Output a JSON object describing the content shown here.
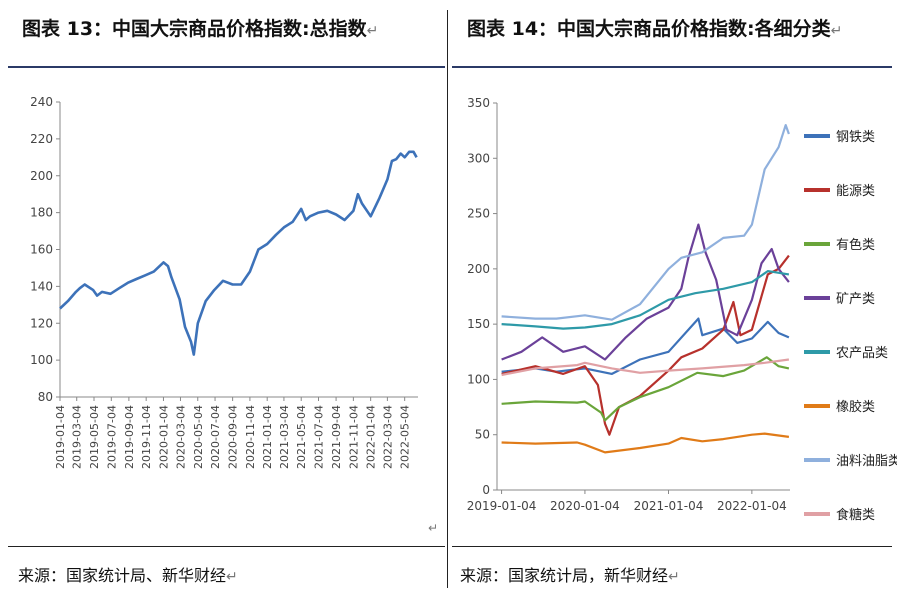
{
  "left": {
    "title": "图表 13：中国大宗商品价格指数:总指数",
    "source": "来源：国家统计局、新华财经",
    "chart_data": {
      "type": "line",
      "series": [
        {
          "color": "#3d72b9",
          "points": [
            [
              "2019-01-04",
              128
            ],
            [
              "2019-02-01",
              132
            ],
            [
              "2019-03-01",
              137
            ],
            [
              "2019-03-15",
              139
            ],
            [
              "2019-04-01",
              141
            ],
            [
              "2019-05-01",
              138
            ],
            [
              "2019-05-15",
              135
            ],
            [
              "2019-06-01",
              137
            ],
            [
              "2019-07-01",
              136
            ],
            [
              "2019-08-01",
              139
            ],
            [
              "2019-09-01",
              142
            ],
            [
              "2019-10-01",
              144
            ],
            [
              "2019-11-01",
              146
            ],
            [
              "2019-12-01",
              148
            ],
            [
              "2020-01-04",
              153
            ],
            [
              "2020-01-20",
              151
            ],
            [
              "2020-02-01",
              145
            ],
            [
              "2020-03-01",
              133
            ],
            [
              "2020-03-20",
              118
            ],
            [
              "2020-04-10",
              110
            ],
            [
              "2020-04-20",
              103
            ],
            [
              "2020-05-04",
              120
            ],
            [
              "2020-06-01",
              132
            ],
            [
              "2020-07-01",
              138
            ],
            [
              "2020-08-01",
              143
            ],
            [
              "2020-09-04",
              141
            ],
            [
              "2020-10-04",
              141
            ],
            [
              "2020-11-04",
              148
            ],
            [
              "2020-12-04",
              160
            ],
            [
              "2021-01-04",
              163
            ],
            [
              "2021-02-04",
              168
            ],
            [
              "2021-03-04",
              172
            ],
            [
              "2021-04-04",
              175
            ],
            [
              "2021-05-04",
              182
            ],
            [
              "2021-05-20",
              176
            ],
            [
              "2021-06-04",
              178
            ],
            [
              "2021-07-04",
              180
            ],
            [
              "2021-08-04",
              181
            ],
            [
              "2021-09-04",
              179
            ],
            [
              "2021-10-04",
              176
            ],
            [
              "2021-11-04",
              181
            ],
            [
              "2021-11-20",
              190
            ],
            [
              "2021-12-04",
              185
            ],
            [
              "2022-01-04",
              178
            ],
            [
              "2022-02-04",
              188
            ],
            [
              "2022-03-04",
              198
            ],
            [
              "2022-03-20",
              208
            ],
            [
              "2022-04-04",
              209
            ],
            [
              "2022-04-20",
              212
            ],
            [
              "2022-05-04",
              210
            ],
            [
              "2022-05-20",
              213
            ],
            [
              "2022-06-04",
              213
            ],
            [
              "2022-06-15",
              210
            ]
          ]
        }
      ],
      "ylim": [
        80,
        240
      ],
      "yticks": [
        "80",
        "100",
        "120",
        "140",
        "160",
        "180",
        "200",
        "220",
        "240"
      ],
      "xticks": [
        "2019-01-04",
        "2019-03-04",
        "2019-05-04",
        "2019-07-04",
        "2019-09-04",
        "2019-11-04",
        "2020-01-04",
        "2020-03-04",
        "2020-05-04",
        "2020-07-04",
        "2020-09-04",
        "2020-11-04",
        "2021-01-04",
        "2021-03-04",
        "2021-05-04",
        "2021-07-04",
        "2021-09-04",
        "2021-11-04",
        "2022-01-04",
        "2022-03-04",
        "2022-05-04"
      ]
    }
  },
  "right": {
    "title": "图表 14：中国大宗商品价格指数:各细分类",
    "source": "来源：国家统计局，新华财经",
    "chart_data": {
      "type": "line",
      "ylim": [
        0,
        350
      ],
      "yticks": [
        "0",
        "50",
        "100",
        "150",
        "200",
        "250",
        "300",
        "350"
      ],
      "xticks": [
        "2019-01-04",
        "2020-01-04",
        "2021-01-04",
        "2022-01-04"
      ],
      "legend_position": "right",
      "series": [
        {
          "name": "钢铁类",
          "color": "#3d72b9",
          "points": [
            [
              "2019-01-04",
              107
            ],
            [
              "2019-06-01",
              110
            ],
            [
              "2019-09-01",
              107
            ],
            [
              "2020-01-04",
              110
            ],
            [
              "2020-05-01",
              105
            ],
            [
              "2020-09-01",
              118
            ],
            [
              "2021-01-04",
              125
            ],
            [
              "2021-05-15",
              155
            ],
            [
              "2021-06-01",
              140
            ],
            [
              "2021-09-01",
              146
            ],
            [
              "2021-11-01",
              133
            ],
            [
              "2022-01-04",
              137
            ],
            [
              "2022-03-15",
              152
            ],
            [
              "2022-05-01",
              142
            ],
            [
              "2022-06-15",
              138
            ]
          ]
        },
        {
          "name": "能源类",
          "color": "#b7312c",
          "points": [
            [
              "2019-01-04",
              105
            ],
            [
              "2019-06-01",
              112
            ],
            [
              "2019-10-01",
              105
            ],
            [
              "2020-01-04",
              112
            ],
            [
              "2020-03-01",
              95
            ],
            [
              "2020-04-01",
              60
            ],
            [
              "2020-04-20",
              50
            ],
            [
              "2020-06-01",
              75
            ],
            [
              "2020-09-01",
              85
            ],
            [
              "2021-01-04",
              108
            ],
            [
              "2021-03-01",
              120
            ],
            [
              "2021-06-01",
              128
            ],
            [
              "2021-09-01",
              145
            ],
            [
              "2021-10-15",
              170
            ],
            [
              "2021-11-15",
              140
            ],
            [
              "2022-01-04",
              145
            ],
            [
              "2022-03-15",
              195
            ],
            [
              "2022-05-01",
              200
            ],
            [
              "2022-06-15",
              212
            ]
          ]
        },
        {
          "name": "有色类",
          "color": "#6aa53a",
          "points": [
            [
              "2019-01-04",
              78
            ],
            [
              "2019-06-01",
              80
            ],
            [
              "2019-12-01",
              79
            ],
            [
              "2020-01-04",
              80
            ],
            [
              "2020-03-15",
              70
            ],
            [
              "2020-04-01",
              63
            ],
            [
              "2020-06-01",
              75
            ],
            [
              "2020-09-01",
              84
            ],
            [
              "2021-01-04",
              93
            ],
            [
              "2021-05-10",
              106
            ],
            [
              "2021-09-01",
              103
            ],
            [
              "2021-12-01",
              108
            ],
            [
              "2022-03-10",
              120
            ],
            [
              "2022-05-01",
              112
            ],
            [
              "2022-06-15",
              110
            ]
          ]
        },
        {
          "name": "矿产类",
          "color": "#6b4199",
          "points": [
            [
              "2019-01-04",
              118
            ],
            [
              "2019-04-01",
              125
            ],
            [
              "2019-07-01",
              138
            ],
            [
              "2019-10-01",
              125
            ],
            [
              "2020-01-04",
              130
            ],
            [
              "2020-04-01",
              118
            ],
            [
              "2020-07-01",
              138
            ],
            [
              "2020-10-01",
              155
            ],
            [
              "2021-01-04",
              165
            ],
            [
              "2021-03-01",
              182
            ],
            [
              "2021-04-01",
              210
            ],
            [
              "2021-05-15",
              240
            ],
            [
              "2021-06-15",
              215
            ],
            [
              "2021-08-01",
              190
            ],
            [
              "2021-09-15",
              145
            ],
            [
              "2021-11-01",
              140
            ],
            [
              "2022-01-04",
              172
            ],
            [
              "2022-02-15",
              205
            ],
            [
              "2022-04-01",
              218
            ],
            [
              "2022-05-01",
              200
            ],
            [
              "2022-06-15",
              188
            ]
          ]
        },
        {
          "name": "农产品类",
          "color": "#2e9aa8",
          "points": [
            [
              "2019-01-04",
              150
            ],
            [
              "2019-06-01",
              148
            ],
            [
              "2019-10-01",
              146
            ],
            [
              "2020-01-04",
              147
            ],
            [
              "2020-05-01",
              150
            ],
            [
              "2020-09-01",
              158
            ],
            [
              "2021-01-04",
              172
            ],
            [
              "2021-05-01",
              178
            ],
            [
              "2021-09-01",
              182
            ],
            [
              "2022-01-04",
              188
            ],
            [
              "2022-03-15",
              198
            ],
            [
              "2022-06-15",
              195
            ]
          ]
        },
        {
          "name": "橡胶类",
          "color": "#e07b18",
          "points": [
            [
              "2019-01-04",
              43
            ],
            [
              "2019-06-01",
              42
            ],
            [
              "2019-12-01",
              43
            ],
            [
              "2020-01-04",
              41
            ],
            [
              "2020-04-01",
              34
            ],
            [
              "2020-09-01",
              38
            ],
            [
              "2021-01-04",
              42
            ],
            [
              "2021-03-01",
              47
            ],
            [
              "2021-06-01",
              44
            ],
            [
              "2021-09-01",
              46
            ],
            [
              "2022-01-04",
              50
            ],
            [
              "2022-03-01",
              51
            ],
            [
              "2022-06-15",
              48
            ]
          ]
        },
        {
          "name": "油料油脂类",
          "color": "#8fb0dd",
          "points": [
            [
              "2019-01-04",
              157
            ],
            [
              "2019-06-01",
              155
            ],
            [
              "2019-09-01",
              155
            ],
            [
              "2020-01-04",
              158
            ],
            [
              "2020-05-01",
              154
            ],
            [
              "2020-09-01",
              168
            ],
            [
              "2021-01-04",
              200
            ],
            [
              "2021-03-01",
              210
            ],
            [
              "2021-06-01",
              215
            ],
            [
              "2021-09-01",
              228
            ],
            [
              "2021-12-01",
              230
            ],
            [
              "2022-01-04",
              240
            ],
            [
              "2022-03-01",
              290
            ],
            [
              "2022-05-01",
              310
            ],
            [
              "2022-06-01",
              330
            ],
            [
              "2022-06-15",
              322
            ]
          ]
        },
        {
          "name": "食糖类",
          "color": "#e0a0a4",
          "points": [
            [
              "2019-01-04",
              104
            ],
            [
              "2019-06-01",
              110
            ],
            [
              "2019-12-01",
              113
            ],
            [
              "2020-01-04",
              115
            ],
            [
              "2020-05-01",
              110
            ],
            [
              "2020-09-01",
              106
            ],
            [
              "2021-01-04",
              108
            ],
            [
              "2021-06-01",
              110
            ],
            [
              "2021-12-01",
              113
            ],
            [
              "2022-03-01",
              115
            ],
            [
              "2022-06-15",
              118
            ]
          ]
        }
      ]
    }
  }
}
